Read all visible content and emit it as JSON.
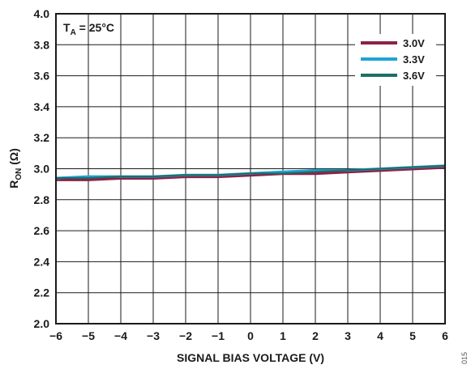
{
  "chart_data": {
    "type": "line",
    "annotation": {
      "main": "T",
      "sub": "A",
      "rest": " = 25°C"
    },
    "xlabel": "SIGNAL BIAS VOLTAGE (V)",
    "ylabel": {
      "main": "R",
      "sub": "ON",
      "rest": "  (Ω)"
    },
    "xlim": [
      -6,
      6
    ],
    "ylim": [
      2.0,
      4.0
    ],
    "x_ticks": [
      "−6",
      "−5",
      "−4",
      "−3",
      "−2",
      "−1",
      "0",
      "1",
      "2",
      "3",
      "4",
      "5",
      "6"
    ],
    "y_ticks": [
      "2.0",
      "2.2",
      "2.4",
      "2.6",
      "2.8",
      "3.0",
      "3.2",
      "3.4",
      "3.6",
      "3.8",
      "4.0"
    ],
    "grid": true,
    "legend_position": "top-right",
    "series": [
      {
        "name": "3.0V",
        "color": "#8b2346",
        "x": [
          -6,
          -5,
          -4,
          -3,
          -2,
          -1,
          0,
          1,
          2,
          3,
          4,
          5,
          6
        ],
        "y": [
          2.93,
          2.93,
          2.94,
          2.94,
          2.95,
          2.95,
          2.96,
          2.97,
          2.97,
          2.98,
          2.99,
          3.0,
          3.01
        ]
      },
      {
        "name": "3.3V",
        "color": "#1fa3d6",
        "x": [
          -6,
          -5,
          -4,
          -3,
          -2,
          -1,
          0,
          1,
          2,
          3,
          4,
          5,
          6
        ],
        "y": [
          2.94,
          2.95,
          2.95,
          2.95,
          2.96,
          2.96,
          2.97,
          2.98,
          2.99,
          2.99,
          3.0,
          3.01,
          3.02
        ]
      },
      {
        "name": "3.6V",
        "color": "#1c6e6a",
        "x": [
          -6,
          -5,
          -4,
          -3,
          -2,
          -1,
          0,
          1,
          2,
          3,
          4,
          5,
          6
        ],
        "y": [
          2.94,
          2.94,
          2.95,
          2.95,
          2.96,
          2.96,
          2.97,
          2.97,
          2.98,
          2.99,
          3.0,
          3.01,
          3.02
        ]
      }
    ]
  },
  "figure_code": "015"
}
